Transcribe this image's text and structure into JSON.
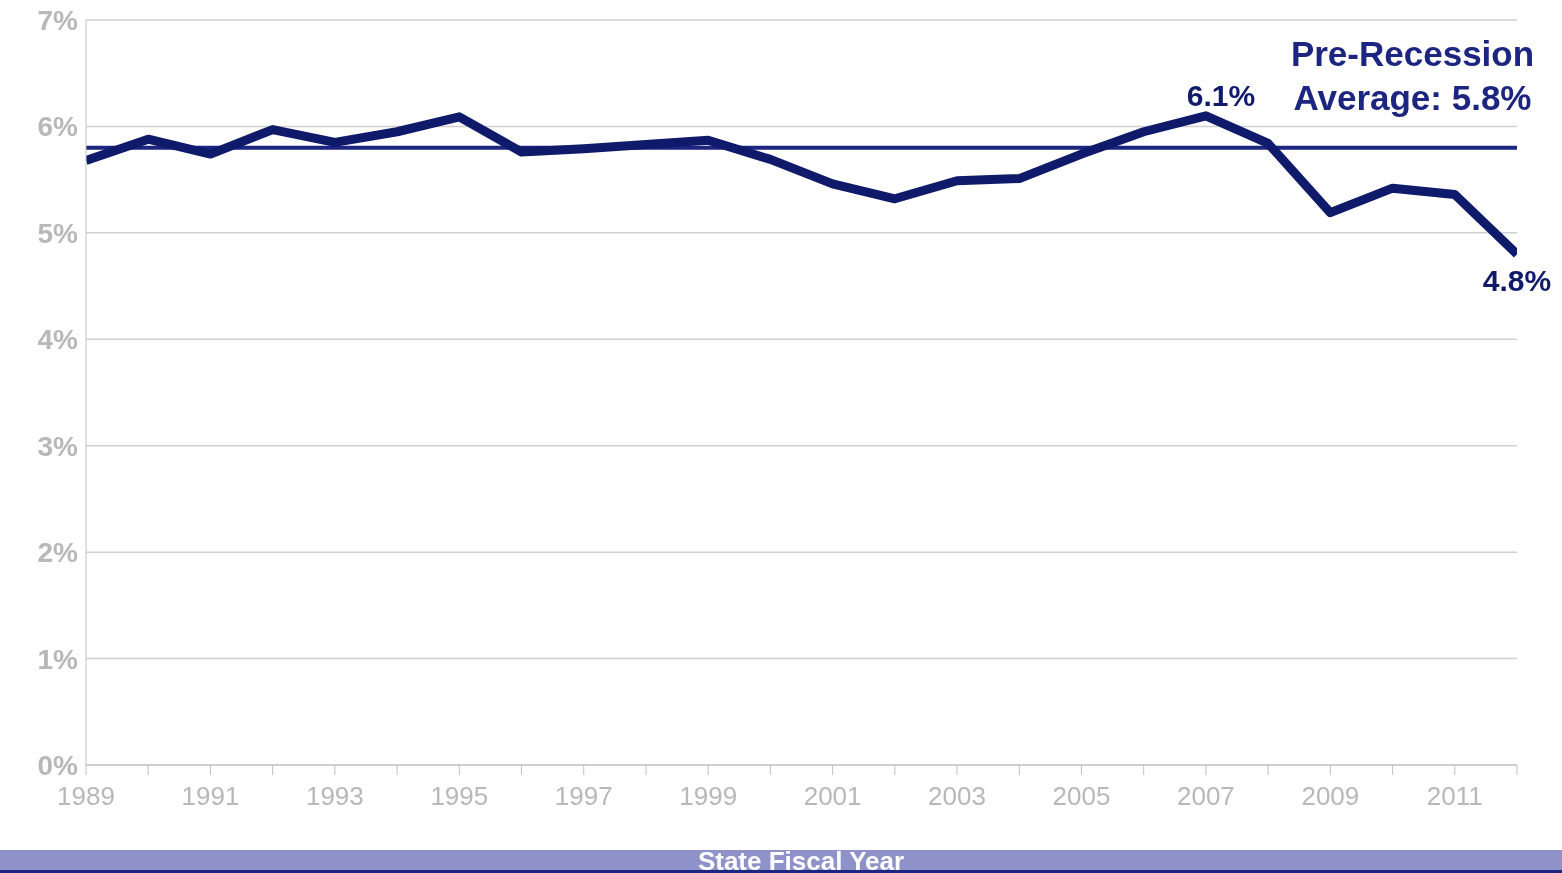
{
  "chart_data": {
    "type": "line",
    "xlabel": "State Fiscal Year",
    "x": [
      1989,
      1990,
      1991,
      1992,
      1993,
      1994,
      1995,
      1996,
      1997,
      1998,
      1999,
      2000,
      2001,
      2002,
      2003,
      2004,
      2005,
      2006,
      2007,
      2008,
      2009,
      2010,
      2011,
      2012
    ],
    "series": [
      {
        "color": "#101a6b",
        "values": [
          5.68,
          5.88,
          5.74,
          5.97,
          5.85,
          5.95,
          6.09,
          5.76,
          5.79,
          5.83,
          5.87,
          5.69,
          5.46,
          5.32,
          5.49,
          5.51,
          5.74,
          5.95,
          6.1,
          5.84,
          5.19,
          5.42,
          5.36,
          4.8
        ],
        "value_labels": [
          null,
          null,
          null,
          null,
          null,
          null,
          null,
          null,
          null,
          null,
          null,
          null,
          null,
          null,
          null,
          null,
          null,
          null,
          "6.1%",
          null,
          null,
          null,
          null,
          "4.8%"
        ]
      }
    ],
    "xlim": [
      1989,
      2012
    ],
    "xticks": [
      1989,
      {
        "value": 1990,
        "label": null
      },
      1991,
      {
        "value": 1992,
        "label": null
      },
      1993,
      {
        "value": 1994,
        "label": null
      },
      1995,
      {
        "value": 1996,
        "label": null
      },
      1997,
      {
        "value": 1998,
        "label": null
      },
      1999,
      {
        "value": 2000,
        "label": null
      },
      2001,
      {
        "value": 2002,
        "label": null
      },
      2003,
      {
        "value": 2004,
        "label": null
      },
      2005,
      {
        "value": 2006,
        "label": null
      },
      2007,
      {
        "value": 2008,
        "label": null
      },
      2009,
      {
        "value": 2010,
        "label": null
      },
      2011,
      {
        "value": 2012,
        "label": null
      }
    ],
    "ylim": [
      0,
      7
    ],
    "yticks": [
      {
        "value": 0,
        "label": "0%"
      },
      {
        "value": 1,
        "label": "1%"
      },
      {
        "value": 2,
        "label": "2%"
      },
      {
        "value": 3,
        "label": "3%"
      },
      {
        "value": 4,
        "label": "4%"
      },
      {
        "value": 5,
        "label": "5%"
      },
      {
        "value": 6,
        "label": "6%"
      },
      {
        "value": 7,
        "label": "7%"
      }
    ],
    "ref_lines": [
      {
        "axis": "y",
        "value": 5.8,
        "label": "Pre-Recession Average: 5.8%",
        "color": "#1c2580"
      }
    ],
    "grid": "y",
    "legend": false,
    "marker": "none",
    "line_style": "solid"
  }
}
